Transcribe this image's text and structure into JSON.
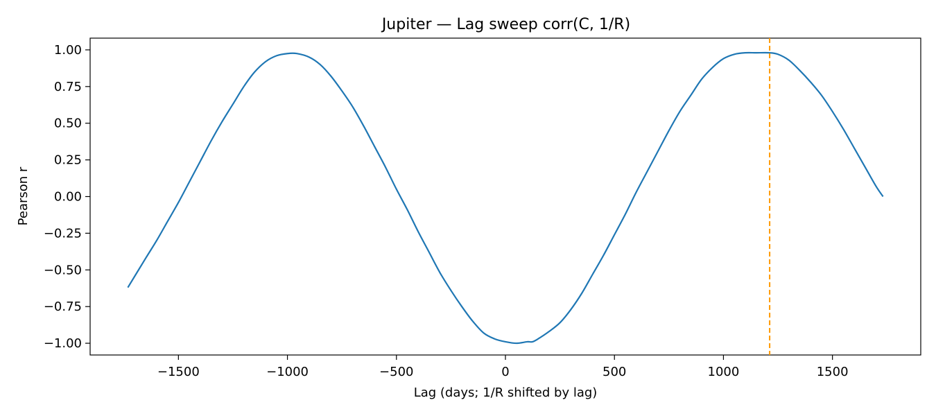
{
  "chart_data": {
    "type": "line",
    "title": "Jupiter — Lag sweep corr(C, 1/R)",
    "xlabel": "Lag (days; 1/R shifted by lag)",
    "ylabel": "Pearson r",
    "xlim": [
      -1905,
      1905
    ],
    "ylim": [
      -1.08,
      1.08
    ],
    "xticks": [
      -1500,
      -1000,
      -500,
      0,
      500,
      1000,
      1500
    ],
    "xtick_labels": [
      "−1500",
      "−1000",
      "−500",
      "0",
      "500",
      "1000",
      "1500"
    ],
    "yticks": [
      1.0,
      0.75,
      0.5,
      0.25,
      0.0,
      -0.25,
      -0.5,
      -0.75,
      -1.0
    ],
    "ytick_labels": [
      "1.00",
      "0.75",
      "0.50",
      "0.25",
      "0.00",
      "−0.25",
      "−0.50",
      "−0.75",
      "−1.00"
    ],
    "grid": false,
    "series": [
      {
        "color": "#1f77b4",
        "x": [
          -1732,
          -1650,
          -1600,
          -1550,
          -1500,
          -1450,
          -1400,
          -1350,
          -1300,
          -1250,
          -1200,
          -1150,
          -1100,
          -1050,
          -1000,
          -957,
          -900,
          -850,
          -800,
          -750,
          -700,
          -650,
          -600,
          -550,
          -500,
          -450,
          -400,
          -350,
          -300,
          -250,
          -200,
          -150,
          -100,
          -50,
          0,
          50,
          100,
          124,
          150,
          200,
          250,
          300,
          350,
          400,
          450,
          500,
          550,
          600,
          650,
          700,
          750,
          800,
          850,
          900,
          950,
          1000,
          1050,
          1100,
          1150,
          1212,
          1250,
          1300,
          1350,
          1400,
          1450,
          1500,
          1550,
          1600,
          1650,
          1700,
          1732
        ],
        "y": [
          -0.62,
          -0.42,
          -0.3,
          -0.17,
          -0.04,
          0.1,
          0.24,
          0.38,
          0.51,
          0.63,
          0.75,
          0.85,
          0.92,
          0.96,
          0.975,
          0.975,
          0.95,
          0.9,
          0.82,
          0.72,
          0.61,
          0.48,
          0.34,
          0.2,
          0.05,
          -0.09,
          -0.24,
          -0.38,
          -0.52,
          -0.64,
          -0.75,
          -0.85,
          -0.93,
          -0.97,
          -0.99,
          -1.0,
          -0.99,
          -0.99,
          -0.97,
          -0.92,
          -0.86,
          -0.77,
          -0.66,
          -0.53,
          -0.4,
          -0.26,
          -0.12,
          0.03,
          0.17,
          0.31,
          0.45,
          0.58,
          0.69,
          0.8,
          0.88,
          0.94,
          0.97,
          0.98,
          0.98,
          0.98,
          0.97,
          0.93,
          0.86,
          0.78,
          0.69,
          0.58,
          0.46,
          0.33,
          0.2,
          0.07,
          -0.0
        ]
      }
    ],
    "vline": {
      "x": 1212,
      "color": "#ff9900",
      "style": "dashed"
    }
  }
}
